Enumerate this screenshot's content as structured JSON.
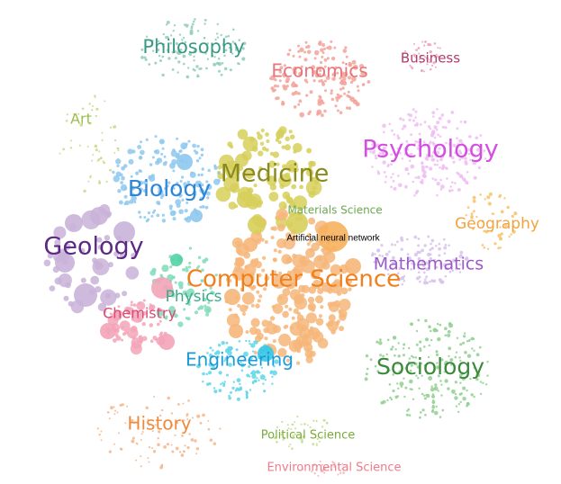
{
  "diagram": {
    "type": "bubble-cluster-map",
    "clusters": [
      {
        "id": "philosophy",
        "label": "Philosophy",
        "color": "#3a9a86"
      },
      {
        "id": "economics",
        "label": "Economics",
        "color": "#e8757a"
      },
      {
        "id": "business",
        "label": "Business",
        "color": "#b23a6a"
      },
      {
        "id": "art",
        "label": "Art",
        "color": "#9bbf4a"
      },
      {
        "id": "psychology",
        "label": "Psychology",
        "color": "#d24fe0"
      },
      {
        "id": "medicine",
        "label": "Medicine",
        "color": "#8a8a1e"
      },
      {
        "id": "biology",
        "label": "Biology",
        "color": "#2e86d6"
      },
      {
        "id": "materials-science",
        "label": "Materials Science",
        "color": "#6aa84f"
      },
      {
        "id": "geography",
        "label": "Geography",
        "color": "#f4a23c"
      },
      {
        "id": "geology",
        "label": "Geology",
        "color": "#5b2a86"
      },
      {
        "id": "mathematics",
        "label": "Mathematics",
        "color": "#9b59c9"
      },
      {
        "id": "computer-science",
        "label": "Computer Science",
        "color": "#f07f1c"
      },
      {
        "id": "physics",
        "label": "Physics",
        "color": "#3aaa8a"
      },
      {
        "id": "chemistry",
        "label": "Chemistry",
        "color": "#d94a73"
      },
      {
        "id": "engineering",
        "label": "Engineering",
        "color": "#1a9ad6"
      },
      {
        "id": "sociology",
        "label": "Sociology",
        "color": "#3a8a3a"
      },
      {
        "id": "history",
        "label": "History",
        "color": "#ef8a3a"
      },
      {
        "id": "political-science",
        "label": "Political Science",
        "color": "#7aaa3a"
      },
      {
        "id": "environmental-science",
        "label": "Environmental Science",
        "color": "#f07a8a"
      }
    ],
    "highlighted_node": {
      "label": "Artificial neural network"
    }
  }
}
